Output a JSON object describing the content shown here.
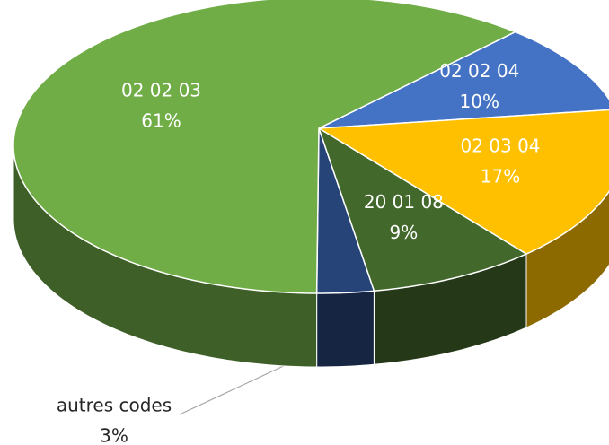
{
  "chart_data": {
    "type": "pie",
    "categories": [
      "02 02 04",
      "02 03 04",
      "20 01 08",
      "autres codes",
      "02 02 03"
    ],
    "values": [
      10,
      17,
      9,
      3,
      61
    ],
    "value_labels": [
      "10%",
      "17%",
      "9%",
      "3%",
      "61%"
    ],
    "colors": [
      "#4472c4",
      "#ffc000",
      "#43682b",
      "#264478",
      "#70ad47"
    ]
  }
}
